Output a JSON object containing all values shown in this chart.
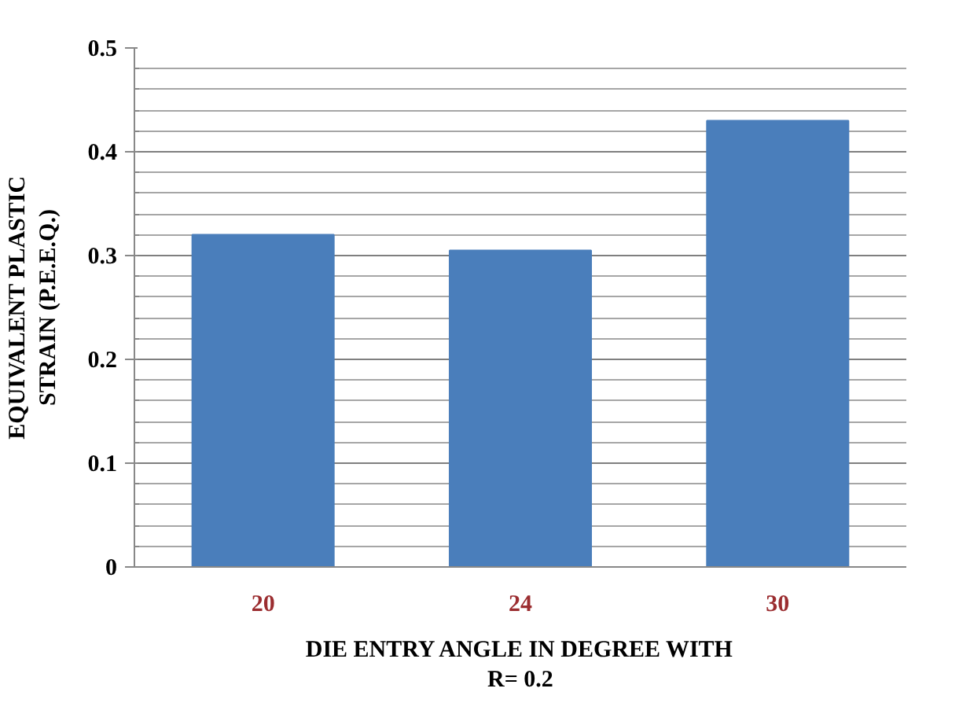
{
  "chart_data": {
    "type": "bar",
    "xlabel": "DIE ENTRY ANGLE IN DEGREE WITH\nR= 0.2",
    "ylabel": "EQUIVALENT PLASTIC\nSTRAIN (P.E.E.Q.)",
    "categories": [
      "20",
      "24",
      "30"
    ],
    "values": [
      0.32,
      0.305,
      0.43
    ],
    "color": "#4a7ebb",
    "ylim": [
      0,
      0.5
    ],
    "yticks": [
      0,
      {
        "value": 0.02,
        "label": null
      },
      {
        "value": 0.04,
        "label": null
      },
      {
        "value": 0.06,
        "label": null
      },
      {
        "value": 0.08,
        "label": null
      },
      0.1,
      {
        "value": 0.12,
        "label": null
      },
      {
        "value": 0.14,
        "label": null
      },
      {
        "value": 0.16,
        "label": null
      },
      {
        "value": 0.18,
        "label": null
      },
      0.2,
      {
        "value": 0.22,
        "label": null
      },
      {
        "value": 0.24,
        "label": null
      },
      {
        "value": 0.26,
        "label": null
      },
      {
        "value": 0.28,
        "label": null
      },
      0.3,
      {
        "value": 0.32,
        "label": null
      },
      {
        "value": 0.34,
        "label": null
      },
      {
        "value": 0.36,
        "label": null
      },
      {
        "value": 0.38,
        "label": null
      },
      0.4,
      {
        "value": 0.42,
        "label": null
      },
      {
        "value": 0.44,
        "label": null
      },
      {
        "value": 0.46,
        "label": null
      },
      {
        "value": 0.48,
        "label": null
      },
      0.5
    ],
    "grid": "y"
  }
}
